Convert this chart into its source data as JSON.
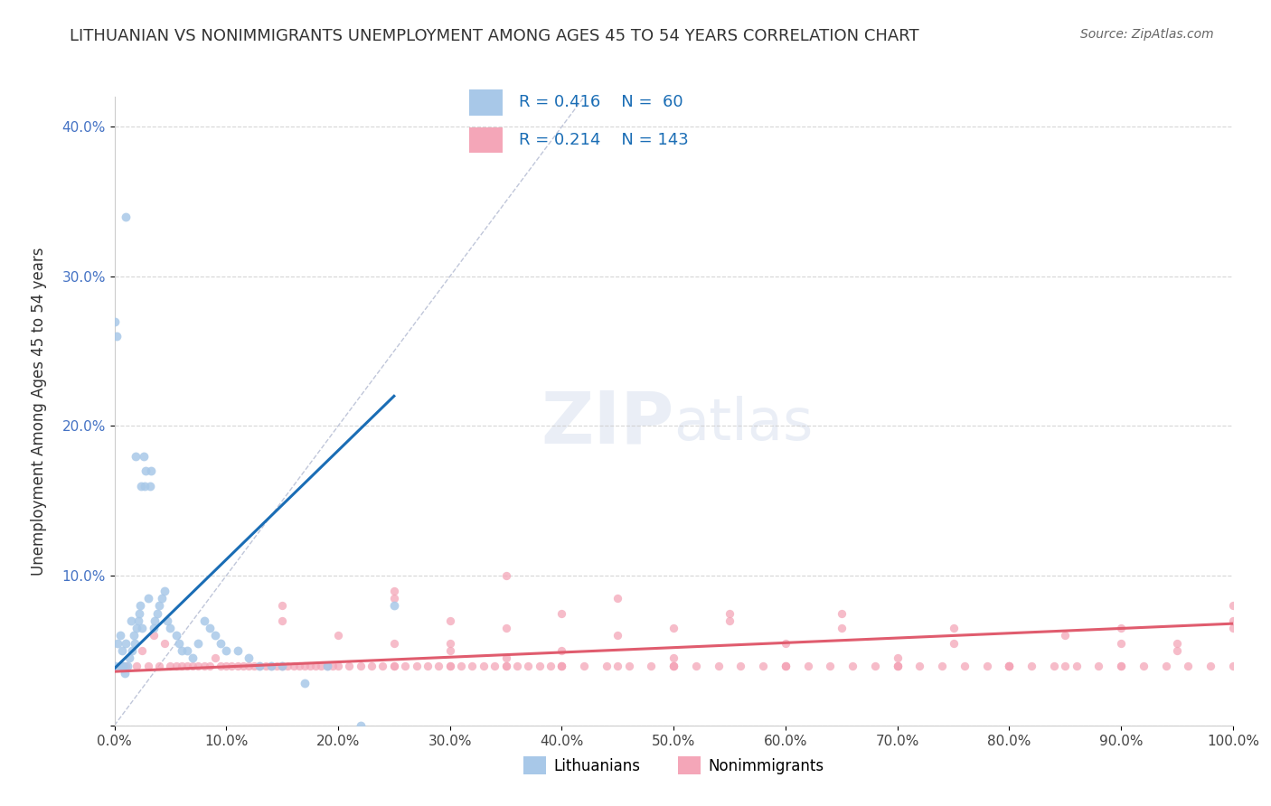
{
  "title": "LITHUANIAN VS NONIMMIGRANTS UNEMPLOYMENT AMONG AGES 45 TO 54 YEARS CORRELATION CHART",
  "source": "Source: ZipAtlas.com",
  "ylabel": "Unemployment Among Ages 45 to 54 years",
  "xlim": [
    0,
    1.0
  ],
  "ylim": [
    0,
    0.42
  ],
  "xticks": [
    0.0,
    0.1,
    0.2,
    0.3,
    0.4,
    0.5,
    0.6,
    0.7,
    0.8,
    0.9,
    1.0
  ],
  "xtick_labels": [
    "0.0%",
    "10.0%",
    "20.0%",
    "30.0%",
    "40.0%",
    "50.0%",
    "60.0%",
    "70.0%",
    "80.0%",
    "90.0%",
    "100.0%"
  ],
  "yticks": [
    0.0,
    0.1,
    0.2,
    0.3,
    0.4
  ],
  "ytick_labels": [
    "",
    "10.0%",
    "20.0%",
    "30.0%",
    "40.0%"
  ],
  "color_blue": "#a8c8e8",
  "color_pink": "#f4a6b8",
  "color_blue_line": "#1a6db5",
  "color_pink_line": "#e05c6e",
  "color_diag_line": "#b0b8d0",
  "watermark_zip": "ZIP",
  "watermark_atlas": "atlas",
  "title_color": "#333333",
  "source_color": "#666666",
  "legend_label1": "Lithuanians",
  "legend_label2": "Nonimmigrants",
  "legend_text_color": "#1a6db5",
  "blue_scatter_x": [
    0.0,
    0.0,
    0.002,
    0.003,
    0.005,
    0.005,
    0.006,
    0.007,
    0.007,
    0.008,
    0.009,
    0.01,
    0.01,
    0.012,
    0.013,
    0.015,
    0.016,
    0.017,
    0.018,
    0.019,
    0.02,
    0.021,
    0.022,
    0.023,
    0.024,
    0.025,
    0.026,
    0.027,
    0.028,
    0.03,
    0.032,
    0.033,
    0.035,
    0.036,
    0.038,
    0.04,
    0.042,
    0.045,
    0.047,
    0.05,
    0.055,
    0.058,
    0.06,
    0.065,
    0.07,
    0.075,
    0.08,
    0.085,
    0.09,
    0.095,
    0.1,
    0.11,
    0.12,
    0.13,
    0.14,
    0.15,
    0.17,
    0.19,
    0.22,
    0.25
  ],
  "blue_scatter_y": [
    0.04,
    0.27,
    0.26,
    0.055,
    0.04,
    0.06,
    0.04,
    0.05,
    0.04,
    0.04,
    0.035,
    0.055,
    0.34,
    0.04,
    0.045,
    0.07,
    0.05,
    0.06,
    0.055,
    0.18,
    0.065,
    0.07,
    0.075,
    0.08,
    0.16,
    0.065,
    0.18,
    0.16,
    0.17,
    0.085,
    0.16,
    0.17,
    0.065,
    0.07,
    0.075,
    0.08,
    0.085,
    0.09,
    0.07,
    0.065,
    0.06,
    0.055,
    0.05,
    0.05,
    0.045,
    0.055,
    0.07,
    0.065,
    0.06,
    0.055,
    0.05,
    0.05,
    0.045,
    0.04,
    0.04,
    0.04,
    0.028,
    0.04,
    0.0,
    0.08
  ],
  "pink_scatter_x": [
    0.01,
    0.02,
    0.025,
    0.03,
    0.035,
    0.04,
    0.045,
    0.05,
    0.055,
    0.06,
    0.065,
    0.07,
    0.075,
    0.08,
    0.085,
    0.09,
    0.095,
    0.1,
    0.105,
    0.11,
    0.115,
    0.12,
    0.125,
    0.13,
    0.135,
    0.14,
    0.145,
    0.15,
    0.155,
    0.16,
    0.165,
    0.17,
    0.175,
    0.18,
    0.185,
    0.19,
    0.195,
    0.2,
    0.21,
    0.22,
    0.23,
    0.24,
    0.25,
    0.26,
    0.27,
    0.28,
    0.29,
    0.3,
    0.31,
    0.32,
    0.33,
    0.34,
    0.35,
    0.36,
    0.37,
    0.38,
    0.39,
    0.4,
    0.42,
    0.44,
    0.46,
    0.48,
    0.5,
    0.52,
    0.54,
    0.56,
    0.58,
    0.6,
    0.62,
    0.64,
    0.66,
    0.68,
    0.7,
    0.72,
    0.74,
    0.76,
    0.78,
    0.8,
    0.82,
    0.84,
    0.86,
    0.88,
    0.9,
    0.92,
    0.94,
    0.96,
    0.98,
    1.0,
    0.15,
    0.25,
    0.35,
    0.45,
    0.55,
    0.65,
    0.75,
    0.85,
    0.95,
    0.25,
    0.35,
    0.45,
    0.55,
    0.65,
    0.75,
    0.85,
    0.95,
    0.3,
    0.4,
    0.5,
    0.6,
    0.7,
    0.8,
    0.9,
    1.0,
    0.2,
    0.3,
    0.4,
    0.5,
    0.6,
    0.7,
    0.8,
    0.9,
    1.0,
    0.15,
    0.25,
    0.3,
    0.35,
    0.4,
    0.45,
    0.5,
    0.6,
    0.7,
    0.8,
    0.9,
    1.0,
    0.15,
    0.25,
    0.3,
    0.35,
    0.4,
    0.5,
    0.6,
    0.7,
    0.8
  ],
  "pink_scatter_y": [
    0.04,
    0.04,
    0.05,
    0.04,
    0.06,
    0.04,
    0.055,
    0.04,
    0.04,
    0.04,
    0.04,
    0.04,
    0.04,
    0.04,
    0.04,
    0.045,
    0.04,
    0.04,
    0.04,
    0.04,
    0.04,
    0.04,
    0.04,
    0.04,
    0.04,
    0.04,
    0.04,
    0.04,
    0.04,
    0.04,
    0.04,
    0.04,
    0.04,
    0.04,
    0.04,
    0.04,
    0.04,
    0.04,
    0.04,
    0.04,
    0.04,
    0.04,
    0.04,
    0.04,
    0.04,
    0.04,
    0.04,
    0.04,
    0.04,
    0.04,
    0.04,
    0.04,
    0.04,
    0.04,
    0.04,
    0.04,
    0.04,
    0.04,
    0.04,
    0.04,
    0.04,
    0.04,
    0.04,
    0.04,
    0.04,
    0.04,
    0.04,
    0.04,
    0.04,
    0.04,
    0.04,
    0.04,
    0.04,
    0.04,
    0.04,
    0.04,
    0.04,
    0.04,
    0.04,
    0.04,
    0.04,
    0.04,
    0.04,
    0.04,
    0.04,
    0.04,
    0.04,
    0.07,
    0.08,
    0.085,
    0.065,
    0.06,
    0.07,
    0.075,
    0.065,
    0.06,
    0.055,
    0.09,
    0.1,
    0.085,
    0.075,
    0.065,
    0.055,
    0.04,
    0.05,
    0.07,
    0.075,
    0.065,
    0.055,
    0.045,
    0.04,
    0.065,
    0.08,
    0.06,
    0.055,
    0.05,
    0.045,
    0.04,
    0.04,
    0.04,
    0.055,
    0.065,
    0.07,
    0.055,
    0.05,
    0.045,
    0.04,
    0.04,
    0.04,
    0.04,
    0.04,
    0.04,
    0.04,
    0.04,
    0.04,
    0.04,
    0.04,
    0.04,
    0.04,
    0.04
  ],
  "blue_trend_x": [
    0.0,
    0.25
  ],
  "blue_trend_y": [
    0.038,
    0.22
  ],
  "pink_trend_x": [
    0.0,
    1.0
  ],
  "pink_trend_y": [
    0.036,
    0.068
  ],
  "diag_line_x": [
    0.0,
    0.42
  ],
  "diag_line_y": [
    0.0,
    0.42
  ]
}
